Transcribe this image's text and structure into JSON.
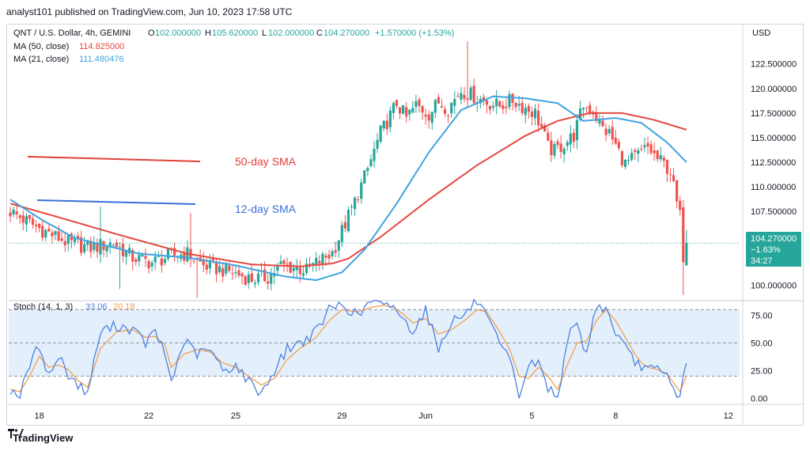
{
  "header": {
    "published": "analyst101 published on TradingView.com, Jun 10, 2023 17:58 UTC"
  },
  "legend": {
    "symbol": "QNT / U.S. Dollar, 4h, GEMINI",
    "o_label": "O",
    "o_value": "102.000000",
    "h_label": "H",
    "h_value": "105.620000",
    "l_label": "L",
    "l_value": "102.000000",
    "c_label": "C",
    "c_value": "104.270000",
    "change": "+1.570000 (+1.53%)",
    "ma50_label": "MA (50, close)",
    "ma50_value": "114.825000",
    "ma21_label": "MA (21, close)",
    "ma21_value": "111.480476"
  },
  "stoch_legend": {
    "label": "Stoch (14, 1, 3)",
    "k": "33.06",
    "d": "20.18"
  },
  "price_box": {
    "price": "104.270000",
    "change": "−1.63%",
    "timer": "34:27"
  },
  "annotations": {
    "sma50": "50-day SMA",
    "sma12": "12-day SMA"
  },
  "footer": {
    "brand": "TradingView"
  },
  "colors": {
    "up": "#26a69a",
    "down": "#ef5350",
    "ma50": "#e5483f",
    "ma21": "#3fa3e0",
    "stochK": "#4f7fe0",
    "stochD": "#f0a050",
    "stoch_bg": "#e3f0fb",
    "annot_red": "#e0413a",
    "annot_blue": "#3a6fd8",
    "price_label": "#26a69a"
  },
  "chart_data": {
    "type": "candlestick",
    "title": "QNT / U.S. Dollar, 4h, GEMINI",
    "currency": "USD",
    "ylim": [
      98.5,
      126.5
    ],
    "y_ticks": [
      "100.000000",
      "102.500000",
      "105.000000",
      "107.500000",
      "110.000000",
      "112.500000",
      "115.000000",
      "117.500000",
      "120.000000",
      "122.500000"
    ],
    "y_tick_values": [
      100,
      102.5,
      105,
      107.5,
      110,
      112.5,
      115,
      117.5,
      120,
      122.5
    ],
    "x_ticks": [
      "18",
      "22",
      "25",
      "29",
      "Jun",
      "5",
      "8",
      "12"
    ],
    "x_tick_index": [
      9,
      43,
      70,
      103,
      129,
      162,
      188,
      223
    ],
    "n_bars": 227,
    "last_price": 104.27,
    "anchors": {
      "close": [
        [
          0,
          107.5
        ],
        [
          5,
          106.5
        ],
        [
          10,
          105.6
        ],
        [
          18,
          104.3
        ],
        [
          25,
          103.8
        ],
        [
          32,
          104.3
        ],
        [
          38,
          102.8
        ],
        [
          44,
          102.3
        ],
        [
          50,
          103.0
        ],
        [
          55,
          103.2
        ],
        [
          60,
          102.0
        ],
        [
          68,
          101.4
        ],
        [
          75,
          100.6
        ],
        [
          80,
          100.8
        ],
        [
          84,
          102.0
        ],
        [
          88,
          101.8
        ],
        [
          92,
          101.5
        ],
        [
          94,
          102.0
        ],
        [
          100,
          103.3
        ],
        [
          103,
          105.5
        ],
        [
          107,
          108.5
        ],
        [
          111,
          111.8
        ],
        [
          115,
          115.5
        ],
        [
          117,
          116.6
        ],
        [
          120,
          118.5
        ],
        [
          123,
          117.0
        ],
        [
          126,
          118.3
        ],
        [
          130,
          117.4
        ],
        [
          133,
          118.6
        ],
        [
          136,
          118.0
        ],
        [
          140,
          119.8
        ],
        [
          144,
          119.2
        ],
        [
          148,
          118.6
        ],
        [
          152,
          118.2
        ],
        [
          156,
          118.8
        ],
        [
          160,
          118.0
        ],
        [
          163,
          117.5
        ],
        [
          165,
          116.0
        ],
        [
          167,
          114.0
        ],
        [
          169,
          113.6
        ],
        [
          172,
          114.4
        ],
        [
          175,
          115.2
        ],
        [
          178,
          118.3
        ],
        [
          181,
          117.7
        ],
        [
          184,
          115.9
        ],
        [
          186,
          115.4
        ],
        [
          188,
          114.2
        ],
        [
          191,
          112.3
        ],
        [
          194,
          113.0
        ],
        [
          198,
          114.0
        ],
        [
          201,
          112.8
        ],
        [
          203,
          112.3
        ],
        [
          205,
          111.6
        ],
        [
          207,
          108.3
        ],
        [
          208,
          107.0
        ],
        [
          209,
          103.0
        ],
        [
          210,
          104.27
        ]
      ],
      "ma50": [
        [
          0,
          108.3
        ],
        [
          15,
          106.9
        ],
        [
          35,
          105.0
        ],
        [
          55,
          103.2
        ],
        [
          75,
          102.1
        ],
        [
          90,
          101.9
        ],
        [
          100,
          102.2
        ],
        [
          105,
          102.7
        ],
        [
          115,
          104.9
        ],
        [
          130,
          108.7
        ],
        [
          145,
          112.2
        ],
        [
          160,
          115.2
        ],
        [
          170,
          116.7
        ],
        [
          180,
          117.5
        ],
        [
          190,
          117.5
        ],
        [
          200,
          116.8
        ],
        [
          210,
          115.8
        ]
      ],
      "ma21": [
        [
          0,
          108.7
        ],
        [
          10,
          106.6
        ],
        [
          20,
          104.8
        ],
        [
          40,
          103.2
        ],
        [
          55,
          102.8
        ],
        [
          70,
          102.0
        ],
        [
          85,
          100.9
        ],
        [
          95,
          100.5
        ],
        [
          103,
          101.3
        ],
        [
          110,
          103.6
        ],
        [
          120,
          108.3
        ],
        [
          130,
          113.5
        ],
        [
          140,
          117.8
        ],
        [
          150,
          119.2
        ],
        [
          160,
          119.0
        ],
        [
          170,
          118.5
        ],
        [
          178,
          116.7
        ],
        [
          188,
          117.0
        ],
        [
          196,
          116.5
        ],
        [
          204,
          114.5
        ],
        [
          210,
          112.5
        ]
      ]
    },
    "ma_series": [
      {
        "name": "MA (50, close)",
        "last": 114.825
      },
      {
        "name": "MA (21, close)",
        "last": 111.480476
      }
    ],
    "stoch": {
      "label": "Stoch (14, 1, 3)",
      "ylim": [
        -4,
        86
      ],
      "y_ticks": [
        "0.00",
        "25.00",
        "50.00",
        "75.00"
      ],
      "y_tick_values": [
        0,
        25,
        50,
        75
      ],
      "band_upper": 80,
      "band_middle": 50,
      "band_lower": 20,
      "k_anchors": [
        [
          0,
          8
        ],
        [
          3,
          2
        ],
        [
          6,
          30
        ],
        [
          9,
          48
        ],
        [
          12,
          20
        ],
        [
          15,
          38
        ],
        [
          18,
          22
        ],
        [
          21,
          12
        ],
        [
          24,
          5
        ],
        [
          28,
          60
        ],
        [
          33,
          66
        ],
        [
          38,
          62
        ],
        [
          42,
          50
        ],
        [
          45,
          60
        ],
        [
          48,
          40
        ],
        [
          50,
          15
        ],
        [
          54,
          52
        ],
        [
          58,
          40
        ],
        [
          62,
          44
        ],
        [
          66,
          25
        ],
        [
          70,
          30
        ],
        [
          74,
          15
        ],
        [
          78,
          5
        ],
        [
          82,
          25
        ],
        [
          86,
          45
        ],
        [
          90,
          50
        ],
        [
          95,
          60
        ],
        [
          99,
          80
        ],
        [
          103,
          85
        ],
        [
          108,
          74
        ],
        [
          112,
          88
        ],
        [
          116,
          82
        ],
        [
          119,
          85
        ],
        [
          122,
          70
        ],
        [
          125,
          62
        ],
        [
          129,
          80
        ],
        [
          133,
          45
        ],
        [
          137,
          70
        ],
        [
          141,
          75
        ],
        [
          145,
          88
        ],
        [
          148,
          72
        ],
        [
          152,
          48
        ],
        [
          155,
          35
        ],
        [
          158,
          2
        ],
        [
          161,
          30
        ],
        [
          164,
          32
        ],
        [
          167,
          10
        ],
        [
          170,
          0
        ],
        [
          173,
          55
        ],
        [
          176,
          65
        ],
        [
          179,
          40
        ],
        [
          182,
          85
        ],
        [
          185,
          80
        ],
        [
          188,
          60
        ],
        [
          191,
          45
        ],
        [
          194,
          32
        ],
        [
          196,
          30
        ],
        [
          198,
          26
        ],
        [
          201,
          25
        ],
        [
          204,
          20
        ],
        [
          206,
          8
        ],
        [
          208,
          2
        ],
        [
          210,
          33
        ]
      ],
      "d_anchors": [
        [
          0,
          8
        ],
        [
          3,
          6
        ],
        [
          6,
          20
        ],
        [
          9,
          38
        ],
        [
          12,
          28
        ],
        [
          15,
          30
        ],
        [
          18,
          26
        ],
        [
          21,
          16
        ],
        [
          24,
          10
        ],
        [
          28,
          45
        ],
        [
          33,
          60
        ],
        [
          38,
          62
        ],
        [
          42,
          55
        ],
        [
          45,
          56
        ],
        [
          48,
          48
        ],
        [
          50,
          28
        ],
        [
          54,
          40
        ],
        [
          58,
          44
        ],
        [
          62,
          42
        ],
        [
          66,
          32
        ],
        [
          70,
          28
        ],
        [
          74,
          20
        ],
        [
          78,
          12
        ],
        [
          82,
          18
        ],
        [
          86,
          35
        ],
        [
          90,
          45
        ],
        [
          95,
          55
        ],
        [
          99,
          70
        ],
        [
          103,
          80
        ],
        [
          108,
          78
        ],
        [
          112,
          82
        ],
        [
          116,
          84
        ],
        [
          119,
          82
        ],
        [
          122,
          76
        ],
        [
          125,
          68
        ],
        [
          129,
          72
        ],
        [
          133,
          58
        ],
        [
          137,
          62
        ],
        [
          141,
          70
        ],
        [
          145,
          80
        ],
        [
          148,
          78
        ],
        [
          152,
          60
        ],
        [
          155,
          45
        ],
        [
          158,
          20
        ],
        [
          161,
          18
        ],
        [
          164,
          28
        ],
        [
          167,
          20
        ],
        [
          170,
          8
        ],
        [
          173,
          30
        ],
        [
          176,
          50
        ],
        [
          179,
          52
        ],
        [
          182,
          70
        ],
        [
          185,
          80
        ],
        [
          188,
          70
        ],
        [
          191,
          55
        ],
        [
          194,
          40
        ],
        [
          196,
          32
        ],
        [
          198,
          28
        ],
        [
          201,
          26
        ],
        [
          204,
          22
        ],
        [
          206,
          14
        ],
        [
          208,
          6
        ],
        [
          210,
          20.18
        ]
      ],
      "k_last": 33.06,
      "d_last": 20.18
    }
  }
}
